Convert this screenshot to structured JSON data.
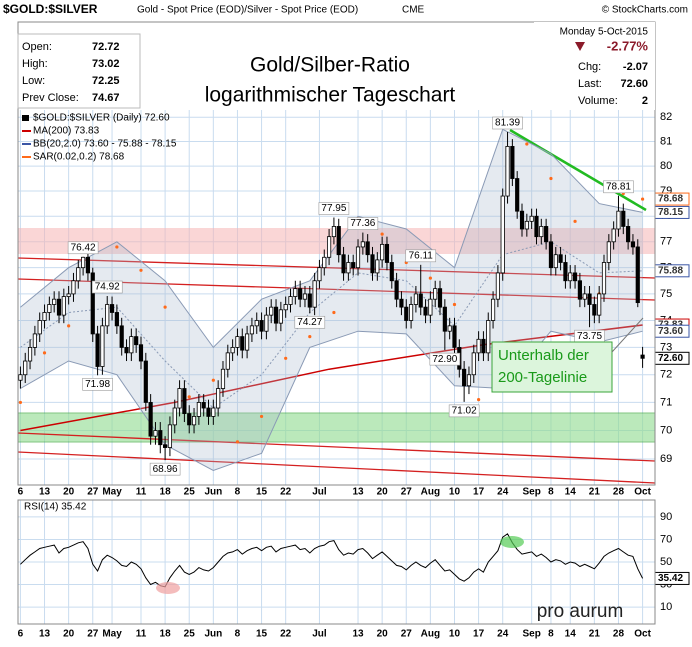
{
  "header": {
    "symbol": "$GOLD:$SILVER",
    "description": "Gold - Spot Price (EOD)/Silver - Spot Price (EOD)",
    "exchange": "CME",
    "source": "© StockCharts.com",
    "date": "Monday  5-Oct-2015",
    "change_pct": "-2.77%",
    "stats": [
      [
        "Open:",
        "72.72"
      ],
      [
        "High:",
        "73.02"
      ],
      [
        "Low:",
        "72.25"
      ],
      [
        "Prev Close:",
        "74.67"
      ]
    ],
    "right_stats": [
      [
        "Chg:",
        "-2.07"
      ],
      [
        "Last:",
        "72.60"
      ],
      [
        "Volume:",
        "2"
      ]
    ]
  },
  "logo": "pro aurum",
  "chart_data": {
    "type": "candlestick",
    "title": "Gold/Silber-Ratio",
    "subtitle": "logarithmischer Tageschart",
    "price_name": "$GOLD:$SILVER (Daily) 72.60",
    "up_color": "#ffffff",
    "down_color": "#000000",
    "log": true,
    "grid": true,
    "ylim": [
      68.1,
      82.3
    ],
    "yticks": [
      69,
      70,
      71,
      72,
      73,
      74,
      75,
      76,
      77,
      78,
      79,
      80,
      81,
      82
    ],
    "xticks": [
      {
        "value": 0,
        "label": "6"
      },
      {
        "value": 5,
        "label": "13"
      },
      {
        "value": 10,
        "label": "20"
      },
      {
        "value": 15,
        "label": "27"
      },
      {
        "value": 19,
        "label": "May"
      },
      {
        "value": 25,
        "label": "11"
      },
      {
        "value": 30,
        "label": "18"
      },
      {
        "value": 35,
        "label": "25"
      },
      {
        "value": 40,
        "label": "Jun"
      },
      {
        "value": 45,
        "label": "8"
      },
      {
        "value": 50,
        "label": "15"
      },
      {
        "value": 55,
        "label": "22"
      },
      {
        "value": 62,
        "label": "Jul"
      },
      {
        "value": 70,
        "label": "13"
      },
      {
        "value": 75,
        "label": "20"
      },
      {
        "value": 80,
        "label": "27"
      },
      {
        "value": 85,
        "label": "Aug"
      },
      {
        "value": 90,
        "label": "10"
      },
      {
        "value": 95,
        "label": "17"
      },
      {
        "value": 100,
        "label": "24"
      },
      {
        "value": 106,
        "label": "Sep"
      },
      {
        "value": 110,
        "label": "8"
      },
      {
        "value": 114,
        "label": "14"
      },
      {
        "value": 119,
        "label": "21"
      },
      {
        "value": 124,
        "label": "28"
      },
      {
        "value": 129,
        "label": "Oct"
      }
    ],
    "ohlc": [
      [
        71.8,
        72.3,
        71.5,
        72.0
      ],
      [
        72.0,
        72.8,
        71.7,
        72.5
      ],
      [
        72.5,
        73.3,
        72.2,
        73.0
      ],
      [
        73.0,
        73.8,
        72.7,
        73.5
      ],
      [
        73.5,
        74.3,
        73.2,
        74.0
      ],
      [
        74.0,
        74.6,
        73.7,
        74.3
      ],
      [
        74.3,
        74.9,
        74.0,
        74.6
      ],
      [
        74.6,
        75.1,
        74.3,
        74.8
      ],
      [
        74.8,
        75.1,
        73.9,
        74.2
      ],
      [
        74.2,
        75.2,
        73.9,
        74.9
      ],
      [
        74.9,
        75.3,
        74.6,
        75.0
      ],
      [
        75.0,
        75.8,
        74.7,
        75.5
      ],
      [
        75.5,
        76.3,
        75.2,
        76.0
      ],
      [
        76.0,
        76.42,
        75.7,
        76.4
      ],
      [
        76.4,
        76.6,
        75.5,
        75.8
      ],
      [
        75.8,
        76.0,
        73.2,
        73.5
      ],
      [
        73.5,
        73.8,
        71.98,
        72.3
      ],
      [
        72.3,
        74.1,
        72.0,
        73.8
      ],
      [
        73.8,
        74.92,
        73.5,
        74.6
      ],
      [
        74.6,
        74.9,
        74.0,
        74.3
      ],
      [
        74.3,
        74.6,
        73.5,
        73.8
      ],
      [
        73.8,
        74.1,
        72.7,
        73.0
      ],
      [
        73.0,
        73.3,
        72.5,
        72.8
      ],
      [
        72.8,
        73.7,
        72.5,
        73.4
      ],
      [
        73.4,
        73.7,
        72.8,
        73.1
      ],
      [
        73.1,
        73.4,
        72.2,
        72.5
      ],
      [
        72.5,
        72.8,
        70.7,
        71.0
      ],
      [
        71.0,
        71.3,
        69.5,
        69.8
      ],
      [
        69.8,
        70.3,
        69.5,
        70.0
      ],
      [
        70.0,
        70.3,
        69.2,
        69.5
      ],
      [
        69.5,
        69.8,
        68.96,
        69.4
      ],
      [
        69.4,
        70.5,
        69.1,
        70.2
      ],
      [
        70.2,
        71.1,
        69.9,
        70.8
      ],
      [
        70.8,
        71.8,
        70.5,
        71.5
      ],
      [
        71.5,
        71.8,
        70.3,
        70.6
      ],
      [
        70.6,
        70.9,
        69.9,
        70.2
      ],
      [
        70.2,
        70.8,
        69.9,
        70.5
      ],
      [
        70.5,
        71.3,
        70.2,
        71.0
      ],
      [
        71.0,
        71.3,
        70.5,
        70.8
      ],
      [
        70.8,
        71.1,
        70.2,
        70.5
      ],
      [
        70.5,
        71.1,
        70.2,
        70.8
      ],
      [
        70.8,
        71.8,
        70.5,
        71.5
      ],
      [
        71.5,
        72.5,
        71.2,
        72.2
      ],
      [
        72.2,
        73.1,
        71.9,
        72.8
      ],
      [
        72.8,
        73.3,
        72.5,
        73.0
      ],
      [
        73.0,
        73.7,
        72.7,
        73.4
      ],
      [
        73.4,
        73.7,
        72.6,
        72.9
      ],
      [
        72.9,
        73.8,
        72.6,
        73.5
      ],
      [
        73.5,
        74.1,
        73.2,
        73.8
      ],
      [
        73.8,
        74.3,
        73.5,
        74.0
      ],
      [
        74.0,
        74.3,
        73.3,
        73.6
      ],
      [
        73.6,
        74.5,
        73.3,
        74.2
      ],
      [
        74.2,
        74.8,
        73.9,
        74.5
      ],
      [
        74.5,
        74.8,
        73.6,
        73.9
      ],
      [
        73.9,
        74.7,
        73.6,
        74.4
      ],
      [
        74.4,
        74.9,
        74.1,
        74.6
      ],
      [
        74.6,
        75.2,
        74.3,
        74.9
      ],
      [
        74.9,
        75.5,
        74.6,
        75.2
      ],
      [
        75.2,
        75.5,
        74.5,
        74.8
      ],
      [
        74.8,
        75.3,
        74.5,
        75.0
      ],
      [
        75.0,
        75.3,
        74.27,
        74.5
      ],
      [
        74.5,
        75.8,
        74.2,
        75.5
      ],
      [
        75.5,
        76.3,
        75.2,
        76.0
      ],
      [
        76.0,
        76.7,
        75.7,
        76.4
      ],
      [
        76.4,
        77.5,
        76.1,
        77.2
      ],
      [
        77.2,
        77.95,
        76.9,
        77.6
      ],
      [
        77.6,
        77.9,
        76.2,
        76.5
      ],
      [
        76.5,
        76.8,
        75.5,
        75.8
      ],
      [
        75.8,
        76.5,
        75.5,
        76.2
      ],
      [
        76.2,
        76.5,
        75.7,
        76.0
      ],
      [
        76.0,
        77.1,
        75.7,
        76.8
      ],
      [
        76.8,
        77.36,
        76.5,
        77.0
      ],
      [
        77.0,
        77.3,
        76.2,
        76.5
      ],
      [
        76.5,
        76.8,
        75.5,
        75.8
      ],
      [
        75.8,
        76.6,
        75.5,
        76.3
      ],
      [
        76.3,
        77.2,
        76.0,
        76.9
      ],
      [
        76.9,
        77.2,
        75.9,
        76.2
      ],
      [
        76.2,
        76.5,
        75.2,
        75.5
      ],
      [
        75.5,
        75.8,
        74.5,
        74.8
      ],
      [
        74.8,
        75.1,
        74.2,
        74.5
      ],
      [
        74.5,
        74.8,
        73.7,
        74.0
      ],
      [
        74.0,
        74.9,
        73.7,
        74.6
      ],
      [
        74.6,
        75.3,
        74.3,
        75.0
      ],
      [
        75.0,
        76.11,
        74.2,
        74.5
      ],
      [
        74.5,
        74.8,
        73.9,
        74.2
      ],
      [
        74.2,
        75.1,
        73.9,
        74.8
      ],
      [
        74.8,
        75.5,
        74.5,
        75.2
      ],
      [
        75.2,
        75.5,
        74.2,
        74.5
      ],
      [
        74.5,
        74.8,
        72.9,
        73.6
      ],
      [
        73.6,
        74.1,
        73.3,
        73.8
      ],
      [
        73.8,
        74.1,
        72.7,
        73.0
      ],
      [
        73.0,
        73.3,
        71.9,
        72.2
      ],
      [
        72.2,
        72.5,
        71.02,
        71.6
      ],
      [
        71.6,
        72.3,
        71.3,
        72.0
      ],
      [
        72.0,
        73.1,
        71.7,
        72.8
      ],
      [
        72.8,
        73.6,
        72.5,
        73.3
      ],
      [
        73.3,
        73.6,
        72.5,
        72.8
      ],
      [
        72.8,
        74.3,
        72.5,
        74.0
      ],
      [
        74.0,
        75.1,
        73.7,
        74.8
      ],
      [
        74.8,
        76.1,
        74.5,
        75.8
      ],
      [
        75.8,
        79.1,
        75.5,
        78.8
      ],
      [
        78.8,
        81.39,
        78.5,
        80.8
      ],
      [
        80.8,
        81.1,
        79.2,
        79.5
      ],
      [
        79.5,
        79.8,
        77.9,
        78.2
      ],
      [
        78.2,
        78.5,
        77.2,
        77.5
      ],
      [
        77.5,
        78.1,
        77.2,
        77.8
      ],
      [
        77.8,
        78.3,
        77.5,
        78.0
      ],
      [
        78.0,
        78.3,
        76.9,
        77.2
      ],
      [
        77.2,
        77.9,
        76.9,
        77.6
      ],
      [
        77.6,
        77.9,
        76.7,
        77.0
      ],
      [
        77.0,
        77.3,
        75.7,
        76.0
      ],
      [
        76.0,
        76.8,
        75.7,
        76.5
      ],
      [
        76.5,
        76.8,
        75.9,
        76.2
      ],
      [
        76.2,
        76.5,
        75.2,
        75.5
      ],
      [
        75.5,
        76.1,
        75.2,
        75.8
      ],
      [
        75.8,
        76.1,
        75.2,
        75.5
      ],
      [
        75.5,
        75.8,
        74.5,
        74.8
      ],
      [
        74.8,
        75.3,
        74.5,
        75.0
      ],
      [
        75.0,
        75.3,
        73.75,
        74.6
      ],
      [
        74.6,
        74.9,
        73.9,
        74.2
      ],
      [
        74.2,
        75.3,
        73.9,
        75.0
      ],
      [
        75.0,
        76.5,
        74.7,
        76.2
      ],
      [
        76.2,
        77.3,
        75.9,
        77.0
      ],
      [
        77.0,
        77.8,
        76.7,
        77.5
      ],
      [
        77.5,
        78.81,
        77.2,
        78.2
      ],
      [
        78.2,
        78.5,
        77.3,
        77.6
      ],
      [
        77.6,
        77.9,
        76.7,
        77.0
      ],
      [
        77.0,
        77.3,
        76.5,
        76.8
      ],
      [
        76.8,
        77.1,
        74.5,
        74.67
      ],
      [
        72.72,
        73.02,
        72.25,
        72.6
      ]
    ],
    "series": [
      {
        "name": "MA(200) 73.83",
        "color": "#cc0000",
        "kind": "line",
        "x": [
          0,
          32,
          64,
          96,
          129
        ],
        "values": [
          70.0,
          71.0,
          72.2,
          73.1,
          73.83
        ]
      },
      {
        "name": "BB(20,2.0) 73.60 - 75.88 - 78.15",
        "color": "#3a55a5",
        "kind": "band",
        "x": [
          0,
          10,
          20,
          30,
          40,
          50,
          60,
          70,
          80,
          90,
          100,
          110,
          120,
          129
        ],
        "values": [
          73.0,
          74.3,
          74.5,
          72.5,
          70.8,
          72.0,
          74.3,
          75.8,
          75.5,
          73.8,
          76.5,
          77.0,
          75.8,
          75.88
        ],
        "upper": [
          74.5,
          76.0,
          77.0,
          75.5,
          73.0,
          74.8,
          75.5,
          78.0,
          77.5,
          76.0,
          81.5,
          80.5,
          78.5,
          78.15
        ],
        "lower": [
          71.5,
          72.5,
          72.0,
          69.5,
          68.6,
          69.2,
          73.0,
          73.6,
          73.5,
          71.6,
          71.5,
          73.6,
          73.2,
          73.6
        ]
      },
      {
        "name": "SAR(0.02,0.2) 78.68",
        "color": "#ff6a1a",
        "kind": "dots",
        "x": [
          0,
          5,
          10,
          15,
          20,
          25,
          30,
          35,
          40,
          45,
          50,
          55,
          60,
          65,
          70,
          75,
          80,
          85,
          90,
          95,
          100,
          105,
          110,
          115,
          120,
          125,
          129
        ],
        "values": [
          71.0,
          72.8,
          73.8,
          74.5,
          76.8,
          75.9,
          74.5,
          71.2,
          71.8,
          69.6,
          70.5,
          72.6,
          73.4,
          74.3,
          77.9,
          77.3,
          76.2,
          75.6,
          74.6,
          71.1,
          72.2,
          80.9,
          79.5,
          77.8,
          75.0,
          78.9,
          78.68
        ]
      }
    ],
    "peak_labels": [
      {
        "index": 13,
        "value": 76.42
      },
      {
        "index": 16,
        "value": 71.98
      },
      {
        "index": 18,
        "value": 74.92
      },
      {
        "index": 30,
        "value": 68.96
      },
      {
        "index": 60,
        "value": 74.27
      },
      {
        "index": 65,
        "value": 77.95
      },
      {
        "index": 71,
        "value": 77.36
      },
      {
        "index": 83,
        "value": 76.11
      },
      {
        "index": 88,
        "value": 72.9,
        "label": "72.90"
      },
      {
        "index": 92,
        "value": 71.02
      },
      {
        "index": 101,
        "value": 81.39
      },
      {
        "index": 118,
        "value": 73.75
      },
      {
        "index": 124,
        "value": 78.81
      }
    ],
    "price_tags": [
      {
        "value": 78.68,
        "color": "#ff6a1a"
      },
      {
        "value": 78.15,
        "color": "#3a55a5"
      },
      {
        "value": 75.88,
        "color": "#3a55a5"
      },
      {
        "value": 73.83,
        "color": "#cc0000"
      },
      {
        "value": 73.6,
        "label": "73.60",
        "color": "#3a55a5"
      },
      {
        "value": 72.6,
        "label": "72.60",
        "color": "#000000"
      }
    ],
    "annotation": [
      "Unterhalb der",
      "200-Tagelinie"
    ],
    "rsi": {
      "name": "RSI(14) 35.42",
      "color": "#000000",
      "ylim": [
        -5,
        105
      ],
      "yticks": [
        10,
        30,
        50,
        70,
        90
      ],
      "last": 35.42,
      "values": [
        48,
        52,
        56,
        59,
        62,
        63,
        64,
        65,
        58,
        62,
        63,
        65,
        67,
        68,
        62,
        48,
        42,
        52,
        56,
        54,
        51,
        47,
        46,
        50,
        48,
        44,
        36,
        30,
        32,
        29,
        28,
        36,
        42,
        47,
        41,
        39,
        41,
        45,
        43,
        42,
        45,
        50,
        55,
        58,
        59,
        61,
        57,
        60,
        62,
        63,
        60,
        63,
        64,
        59,
        62,
        63,
        64,
        65,
        61,
        62,
        58,
        62,
        64,
        65,
        68,
        69,
        61,
        56,
        58,
        57,
        61,
        62,
        58,
        53,
        56,
        59,
        55,
        51,
        47,
        46,
        43,
        47,
        50,
        47,
        45,
        49,
        52,
        47,
        42,
        43,
        39,
        35,
        33,
        36,
        41,
        44,
        41,
        50,
        55,
        60,
        72,
        75,
        67,
        61,
        57,
        58,
        59,
        55,
        57,
        54,
        50,
        52,
        51,
        48,
        50,
        49,
        46,
        48,
        46,
        44,
        49,
        55,
        58,
        60,
        62,
        59,
        56,
        55,
        44,
        35.42
      ]
    }
  }
}
